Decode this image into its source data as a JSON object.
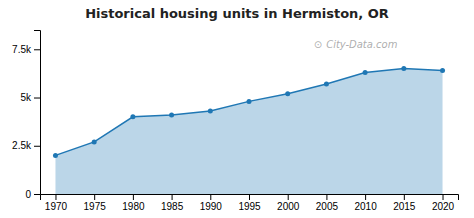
{
  "chart_data": {
    "type": "area",
    "title": "Historical housing units in Hermiston, OR",
    "x": [
      1970,
      1975,
      1980,
      1985,
      1990,
      1995,
      2000,
      2005,
      2010,
      2015,
      2020
    ],
    "values": [
      2000,
      2700,
      4000,
      4100,
      4300,
      4800,
      5200,
      5700,
      6300,
      6500,
      6400
    ],
    "xlim": [
      1968,
      2022
    ],
    "xticks": [
      1970,
      1975,
      1980,
      1985,
      1990,
      1995,
      2000,
      2005,
      2010,
      2015,
      2020
    ],
    "ylim": [
      0,
      8500
    ],
    "yticks": [
      0,
      {
        "value": 2500,
        "label": "2.5k"
      },
      {
        "value": 5000,
        "label": "5k"
      },
      {
        "value": 7500,
        "label": "7.5k"
      }
    ],
    "marker": "circle",
    "grid": false,
    "annotations": [
      "⊙",
      "City-Data.com"
    ]
  }
}
